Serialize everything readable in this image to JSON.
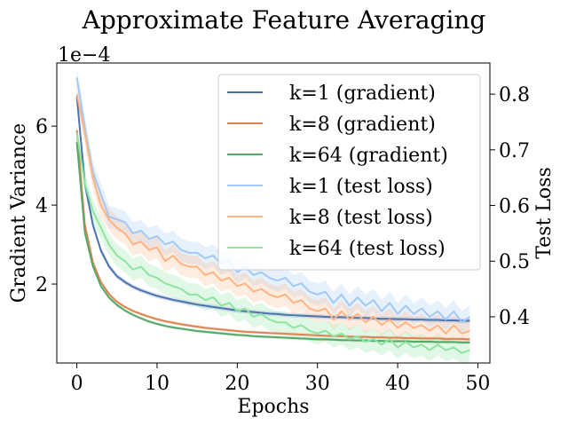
{
  "chart_data": {
    "type": "line",
    "title": "Approximate Feature Averaging",
    "xlabel": "Epochs",
    "ylabel_left": "Gradient Variance",
    "ylabel_right": "Test Loss",
    "left_offset_label": "1e−4",
    "xlim": [
      -2.5,
      51.5
    ],
    "ylim_left": [
      0.0,
      7.6
    ],
    "ylim_right": [
      0.317,
      0.856
    ],
    "xticks": [
      0,
      10,
      20,
      30,
      40,
      50
    ],
    "xtick_labels": [
      "0",
      "10",
      "20",
      "30",
      "40",
      "50"
    ],
    "yticks_left": [
      2,
      4,
      6
    ],
    "ytick_labels_left": [
      "2",
      "4",
      "6"
    ],
    "yticks_right": [
      0.4,
      0.5,
      0.6,
      0.7,
      0.8
    ],
    "ytick_labels_right": [
      "0.4",
      "0.5",
      "0.6",
      "0.7",
      "0.8"
    ],
    "legend_position": "top-right",
    "grid": false,
    "series": [
      {
        "name": "k=1 (gradient)",
        "axis": "left",
        "color": "#4c72b0",
        "band_alpha": 0.2,
        "values": [
          6.75,
          4.55,
          3.5,
          2.85,
          2.45,
          2.2,
          2.05,
          1.93,
          1.84,
          1.77,
          1.7,
          1.65,
          1.6,
          1.56,
          1.52,
          1.48,
          1.45,
          1.42,
          1.39,
          1.36,
          1.33,
          1.31,
          1.29,
          1.27,
          1.25,
          1.24,
          1.22,
          1.21,
          1.2,
          1.19,
          1.18,
          1.17,
          1.16,
          1.16,
          1.15,
          1.14,
          1.14,
          1.13,
          1.12,
          1.12,
          1.11,
          1.11,
          1.1,
          1.1,
          1.09,
          1.09,
          1.08,
          1.08,
          1.07,
          1.07
        ],
        "spread": [
          0.15,
          0.12,
          0.1,
          0.08,
          0.07,
          0.07,
          0.06,
          0.06,
          0.06,
          0.06,
          0.06,
          0.06,
          0.06,
          0.06,
          0.06,
          0.06,
          0.06,
          0.06,
          0.06,
          0.06,
          0.06,
          0.06,
          0.06,
          0.06,
          0.06,
          0.06,
          0.06,
          0.06,
          0.06,
          0.06,
          0.06,
          0.06,
          0.06,
          0.06,
          0.06,
          0.06,
          0.06,
          0.06,
          0.06,
          0.06,
          0.06,
          0.06,
          0.06,
          0.06,
          0.06,
          0.06,
          0.06,
          0.06,
          0.06,
          0.06
        ]
      },
      {
        "name": "k=8 (gradient)",
        "axis": "left",
        "color": "#dd8452",
        "band_alpha": 0.2,
        "values": [
          5.9,
          3.5,
          2.55,
          2.05,
          1.75,
          1.55,
          1.42,
          1.32,
          1.24,
          1.17,
          1.11,
          1.06,
          1.02,
          0.98,
          0.95,
          0.92,
          0.89,
          0.87,
          0.85,
          0.83,
          0.81,
          0.79,
          0.78,
          0.77,
          0.76,
          0.75,
          0.74,
          0.73,
          0.72,
          0.71,
          0.7,
          0.69,
          0.68,
          0.68,
          0.67,
          0.66,
          0.66,
          0.65,
          0.65,
          0.64,
          0.64,
          0.63,
          0.63,
          0.62,
          0.62,
          0.62,
          0.61,
          0.61,
          0.61,
          0.6
        ],
        "spread": [
          0.1,
          0.08,
          0.06,
          0.05,
          0.05,
          0.04,
          0.04,
          0.04,
          0.04,
          0.04,
          0.04,
          0.04,
          0.04,
          0.04,
          0.04,
          0.04,
          0.04,
          0.04,
          0.04,
          0.04,
          0.04,
          0.04,
          0.04,
          0.04,
          0.04,
          0.04,
          0.04,
          0.04,
          0.04,
          0.04,
          0.04,
          0.04,
          0.04,
          0.04,
          0.04,
          0.04,
          0.04,
          0.04,
          0.04,
          0.04,
          0.04,
          0.04,
          0.04,
          0.04,
          0.04,
          0.04,
          0.04,
          0.04,
          0.04,
          0.04
        ]
      },
      {
        "name": "k=64 (gradient)",
        "axis": "left",
        "color": "#55a868",
        "band_alpha": 0.2,
        "values": [
          5.6,
          3.3,
          2.45,
          1.95,
          1.66,
          1.47,
          1.33,
          1.22,
          1.13,
          1.05,
          0.99,
          0.94,
          0.9,
          0.87,
          0.84,
          0.81,
          0.79,
          0.77,
          0.75,
          0.73,
          0.71,
          0.7,
          0.68,
          0.67,
          0.66,
          0.65,
          0.64,
          0.63,
          0.62,
          0.61,
          0.6,
          0.6,
          0.59,
          0.58,
          0.58,
          0.57,
          0.57,
          0.56,
          0.56,
          0.55,
          0.55,
          0.55,
          0.54,
          0.54,
          0.54,
          0.53,
          0.53,
          0.53,
          0.52,
          0.52
        ],
        "spread": [
          0.1,
          0.08,
          0.06,
          0.05,
          0.05,
          0.04,
          0.04,
          0.04,
          0.04,
          0.04,
          0.04,
          0.04,
          0.04,
          0.04,
          0.04,
          0.04,
          0.04,
          0.04,
          0.04,
          0.04,
          0.04,
          0.04,
          0.04,
          0.04,
          0.04,
          0.04,
          0.04,
          0.04,
          0.04,
          0.04,
          0.04,
          0.04,
          0.04,
          0.04,
          0.04,
          0.04,
          0.04,
          0.04,
          0.04,
          0.04,
          0.04,
          0.04,
          0.04,
          0.04,
          0.04,
          0.04,
          0.04,
          0.04,
          0.04,
          0.04
        ]
      },
      {
        "name": "k=1 (test loss)",
        "axis": "right",
        "color": "#a1c9f4",
        "band_alpha": 0.25,
        "values": [
          0.83,
          0.74,
          0.66,
          0.62,
          0.58,
          0.575,
          0.57,
          0.55,
          0.555,
          0.54,
          0.545,
          0.53,
          0.535,
          0.52,
          0.515,
          0.515,
          0.505,
          0.51,
          0.495,
          0.5,
          0.48,
          0.49,
          0.475,
          0.48,
          0.47,
          0.465,
          0.47,
          0.455,
          0.46,
          0.445,
          0.44,
          0.445,
          0.425,
          0.44,
          0.42,
          0.435,
          0.42,
          0.43,
          0.41,
          0.425,
          0.405,
          0.42,
          0.405,
          0.415,
          0.4,
          0.41,
          0.395,
          0.41,
          0.39,
          0.4
        ],
        "spread": [
          0.015,
          0.02,
          0.02,
          0.02,
          0.02,
          0.02,
          0.02,
          0.02,
          0.02,
          0.02,
          0.02,
          0.02,
          0.02,
          0.02,
          0.02,
          0.02,
          0.02,
          0.02,
          0.02,
          0.02,
          0.02,
          0.02,
          0.02,
          0.02,
          0.02,
          0.02,
          0.02,
          0.02,
          0.02,
          0.02,
          0.02,
          0.02,
          0.02,
          0.02,
          0.02,
          0.02,
          0.02,
          0.02,
          0.02,
          0.02,
          0.02,
          0.02,
          0.02,
          0.02,
          0.02,
          0.02,
          0.02,
          0.02,
          0.02,
          0.02
        ]
      },
      {
        "name": "k=8 (test loss)",
        "axis": "right",
        "color": "#ffb482",
        "band_alpha": 0.25,
        "values": [
          0.8,
          0.73,
          0.65,
          0.6,
          0.575,
          0.56,
          0.55,
          0.53,
          0.535,
          0.52,
          0.525,
          0.5,
          0.51,
          0.495,
          0.49,
          0.49,
          0.475,
          0.48,
          0.465,
          0.47,
          0.455,
          0.46,
          0.445,
          0.45,
          0.44,
          0.435,
          0.44,
          0.425,
          0.43,
          0.415,
          0.41,
          0.415,
          0.395,
          0.41,
          0.395,
          0.405,
          0.39,
          0.4,
          0.385,
          0.395,
          0.38,
          0.39,
          0.38,
          0.385,
          0.375,
          0.385,
          0.37,
          0.385,
          0.37,
          0.375
        ],
        "spread": [
          0.015,
          0.02,
          0.02,
          0.02,
          0.02,
          0.02,
          0.02,
          0.02,
          0.02,
          0.02,
          0.02,
          0.02,
          0.02,
          0.02,
          0.02,
          0.02,
          0.02,
          0.02,
          0.02,
          0.02,
          0.02,
          0.02,
          0.02,
          0.02,
          0.02,
          0.02,
          0.02,
          0.02,
          0.02,
          0.02,
          0.02,
          0.02,
          0.02,
          0.02,
          0.02,
          0.02,
          0.02,
          0.02,
          0.02,
          0.02,
          0.02,
          0.02,
          0.02,
          0.02,
          0.02,
          0.02,
          0.02,
          0.02,
          0.02,
          0.02
        ]
      },
      {
        "name": "k=64 (test loss)",
        "axis": "right",
        "color": "#8de5a1",
        "band_alpha": 0.25,
        "values": [
          0.73,
          0.64,
          0.59,
          0.56,
          0.53,
          0.51,
          0.5,
          0.485,
          0.49,
          0.475,
          0.47,
          0.46,
          0.455,
          0.45,
          0.44,
          0.44,
          0.43,
          0.435,
          0.42,
          0.425,
          0.41,
          0.415,
          0.4,
          0.405,
          0.395,
          0.39,
          0.39,
          0.38,
          0.385,
          0.375,
          0.37,
          0.375,
          0.365,
          0.37,
          0.36,
          0.365,
          0.355,
          0.36,
          0.35,
          0.36,
          0.345,
          0.355,
          0.345,
          0.35,
          0.34,
          0.35,
          0.34,
          0.345,
          0.335,
          0.34
        ],
        "spread": [
          0.015,
          0.02,
          0.02,
          0.02,
          0.02,
          0.02,
          0.02,
          0.02,
          0.02,
          0.02,
          0.02,
          0.02,
          0.02,
          0.02,
          0.02,
          0.02,
          0.02,
          0.02,
          0.02,
          0.02,
          0.02,
          0.02,
          0.02,
          0.02,
          0.02,
          0.02,
          0.02,
          0.02,
          0.02,
          0.02,
          0.02,
          0.02,
          0.02,
          0.02,
          0.02,
          0.02,
          0.02,
          0.02,
          0.02,
          0.02,
          0.02,
          0.02,
          0.02,
          0.02,
          0.02,
          0.02,
          0.02,
          0.02,
          0.02,
          0.02
        ]
      }
    ]
  }
}
